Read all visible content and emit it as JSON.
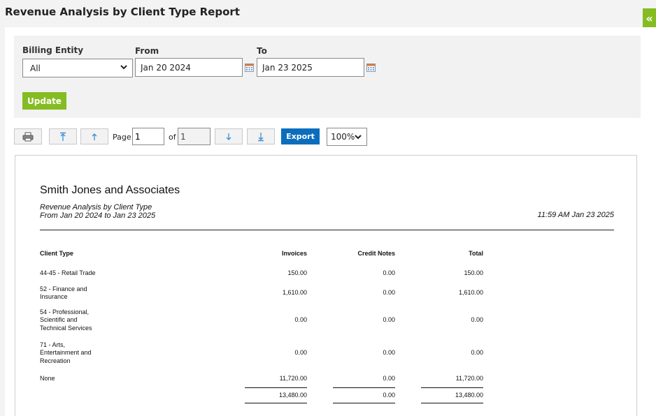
{
  "page": {
    "title": "Revenue Analysis by Client Type Report",
    "collapse_icon": "double-chevron-left-icon"
  },
  "filters": {
    "billing_entity_label": "Billing Entity",
    "billing_entity_value": "All",
    "from_label": "From",
    "from_value": "Jan 20 2024",
    "to_label": "To",
    "to_value": "Jan 23 2025",
    "update_label": "Update",
    "accent_color": "#85bc22"
  },
  "toolbar": {
    "page_label": "Page",
    "page_value": "1",
    "of_label": "of",
    "total_pages": "1",
    "export_label": "Export",
    "zoom_value": "100%",
    "export_color": "#0a6ebd"
  },
  "report": {
    "company": "Smith Jones and Associates",
    "report_name": "Revenue Analysis by Client Type",
    "range": "From Jan 20 2024 to Jan 23 2025",
    "timestamp": "11:59 AM Jan 23 2025",
    "columns": [
      "Client Type",
      "Invoices",
      "Credit Notes",
      "Total"
    ],
    "rows": [
      {
        "type_lines": [
          "44-45 - Retail Trade"
        ],
        "invoices": "150.00",
        "credit_notes": "0.00",
        "total": "150.00"
      },
      {
        "type_lines": [
          "52 - Finance and",
          "Insurance"
        ],
        "invoices": "1,610.00",
        "credit_notes": "0.00",
        "total": "1,610.00"
      },
      {
        "type_lines": [
          "54 - Professional,",
          "Scientific and",
          "Technical Services"
        ],
        "invoices": "0.00",
        "credit_notes": "0.00",
        "total": "0.00"
      },
      {
        "type_lines": [
          "71 - Arts,",
          "Entertainment and",
          "Recreation"
        ],
        "invoices": "0.00",
        "credit_notes": "0.00",
        "total": "0.00"
      },
      {
        "type_lines": [
          "None"
        ],
        "invoices": "11,720.00",
        "credit_notes": "0.00",
        "total": "11,720.00"
      }
    ],
    "totals": {
      "invoices": "13,480.00",
      "credit_notes": "0.00",
      "total": "13,480.00"
    }
  }
}
